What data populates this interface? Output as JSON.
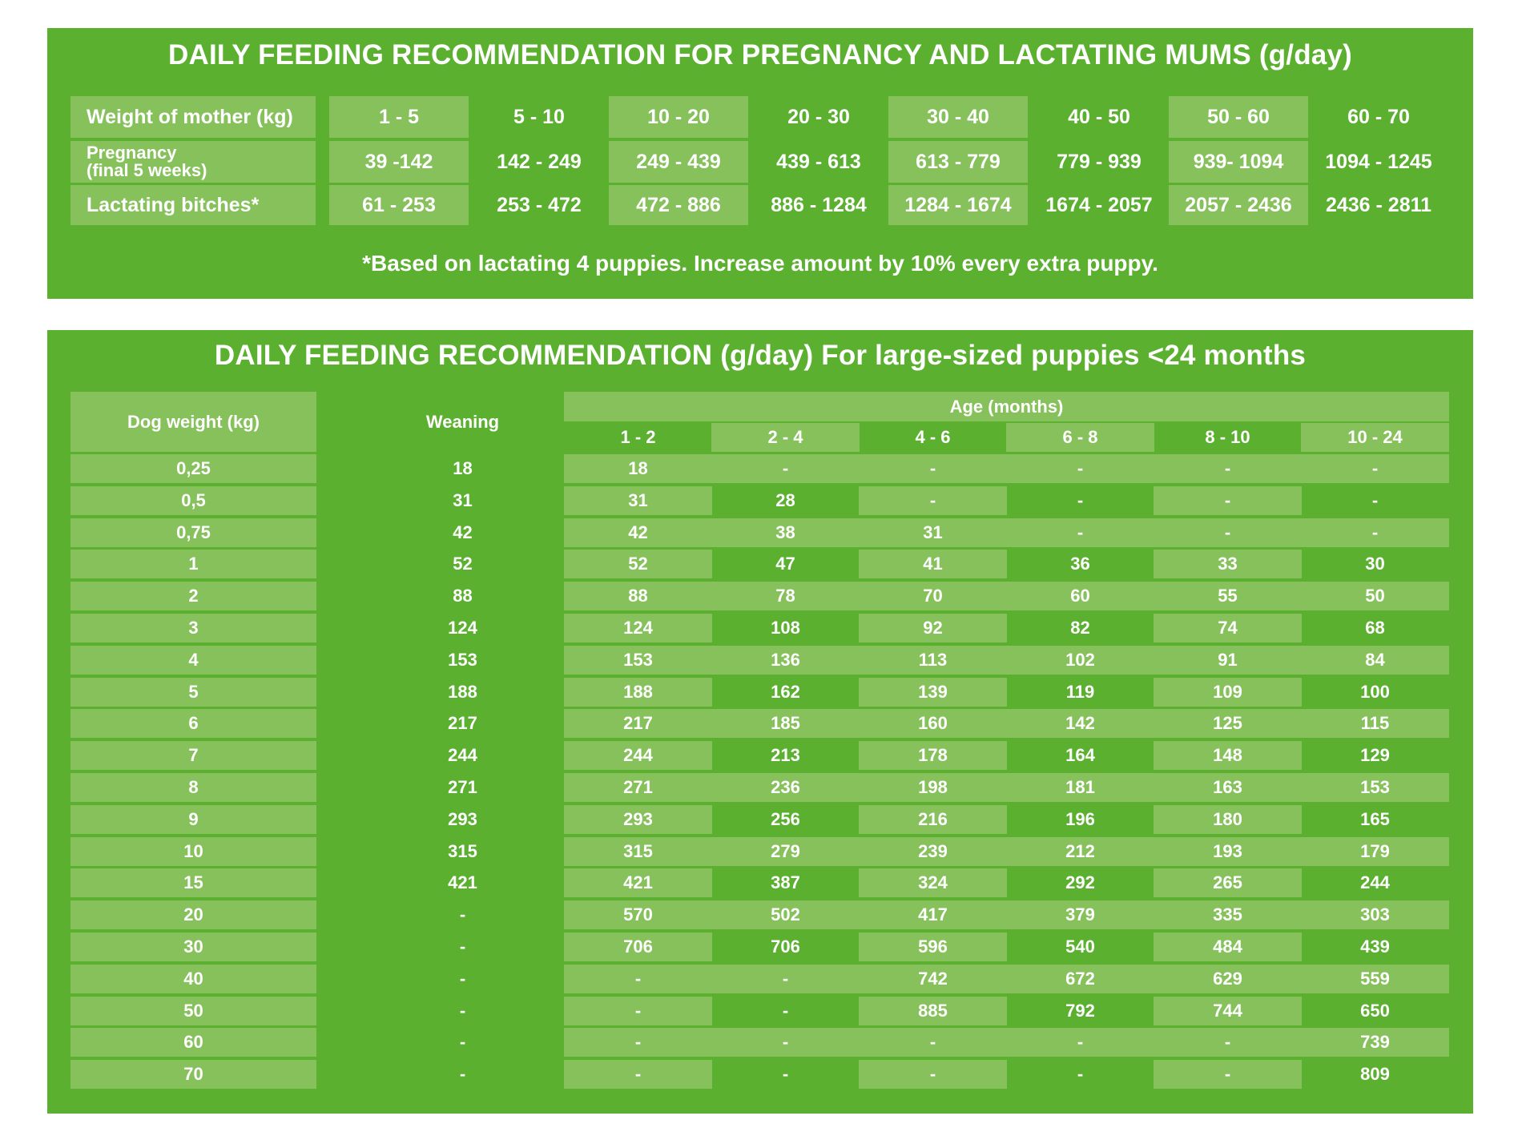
{
  "mothers": {
    "title": "DAILY FEEDING RECOMMENDATION FOR PREGNANCY AND LACTATING MUMS (g/day)",
    "row_labels": {
      "weight": "Weight of mother (kg)",
      "pregnancy_line1": "Pregnancy",
      "pregnancy_line2": "(final 5 weeks)",
      "lactating": "Lactating bitches*"
    },
    "weights": [
      "1 - 5",
      "5 - 10",
      "10 - 20",
      "20 - 30",
      "30 - 40",
      "40 - 50",
      "50 - 60",
      "60 - 70"
    ],
    "pregnancy": [
      "39 -142",
      "142 - 249",
      "249 - 439",
      "439 - 613",
      "613 - 779",
      "779 - 939",
      "939- 1094",
      "1094 - 1245"
    ],
    "lactating": [
      "61 - 253",
      "253 - 472",
      "472 - 886",
      "886 - 1284",
      "1284 - 1674",
      "1674 - 2057",
      "2057 - 2436",
      "2436 - 2811"
    ],
    "note": "*Based on lactating 4 puppies. Increase amount by 10% every extra puppy."
  },
  "puppies": {
    "title": "DAILY FEEDING RECOMMENDATION (g/day) For large-sized puppies <24 months",
    "headers": {
      "dog_weight": "Dog weight (kg)",
      "weaning": "Weaning",
      "age": "Age (months)",
      "ages": [
        "1 - 2",
        "2 - 4",
        "4 - 6",
        "6 - 8",
        "8 - 10",
        "10 - 24"
      ]
    },
    "rows": [
      [
        "0,25",
        "18",
        "18",
        "-",
        "-",
        "-",
        "-",
        "-"
      ],
      [
        "0,5",
        "31",
        "31",
        "28",
        "-",
        "-",
        "-",
        "-"
      ],
      [
        "0,75",
        "42",
        "42",
        "38",
        "31",
        "-",
        "-",
        "-"
      ],
      [
        "1",
        "52",
        "52",
        "47",
        "41",
        "36",
        "33",
        "30"
      ],
      [
        "2",
        "88",
        "88",
        "78",
        "70",
        "60",
        "55",
        "50"
      ],
      [
        "3",
        "124",
        "124",
        "108",
        "92",
        "82",
        "74",
        "68"
      ],
      [
        "4",
        "153",
        "153",
        "136",
        "113",
        "102",
        "91",
        "84"
      ],
      [
        "5",
        "188",
        "188",
        "162",
        "139",
        "119",
        "109",
        "100"
      ],
      [
        "6",
        "217",
        "217",
        "185",
        "160",
        "142",
        "125",
        "115"
      ],
      [
        "7",
        "244",
        "244",
        "213",
        "178",
        "164",
        "148",
        "129"
      ],
      [
        "8",
        "271",
        "271",
        "236",
        "198",
        "181",
        "163",
        "153"
      ],
      [
        "9",
        "293",
        "293",
        "256",
        "216",
        "196",
        "180",
        "165"
      ],
      [
        "10",
        "315",
        "315",
        "279",
        "239",
        "212",
        "193",
        "179"
      ],
      [
        "15",
        "421",
        "421",
        "387",
        "324",
        "292",
        "265",
        "244"
      ],
      [
        "20",
        "-",
        "570",
        "502",
        "417",
        "379",
        "335",
        "303"
      ],
      [
        "30",
        "-",
        "706",
        "706",
        "596",
        "540",
        "484",
        "439"
      ],
      [
        "40",
        "-",
        "-",
        "-",
        "742",
        "672",
        "629",
        "559"
      ],
      [
        "50",
        "-",
        "-",
        "-",
        "885",
        "792",
        "744",
        "650"
      ],
      [
        "60",
        "-",
        "-",
        "-",
        "-",
        "-",
        "-",
        "739"
      ],
      [
        "70",
        "-",
        "-",
        "-",
        "-",
        "-",
        "-",
        "809"
      ]
    ]
  },
  "colors": {
    "panel_green": "#5bb030",
    "cell_light_green": "#86c15b",
    "text": "#ffffff"
  }
}
